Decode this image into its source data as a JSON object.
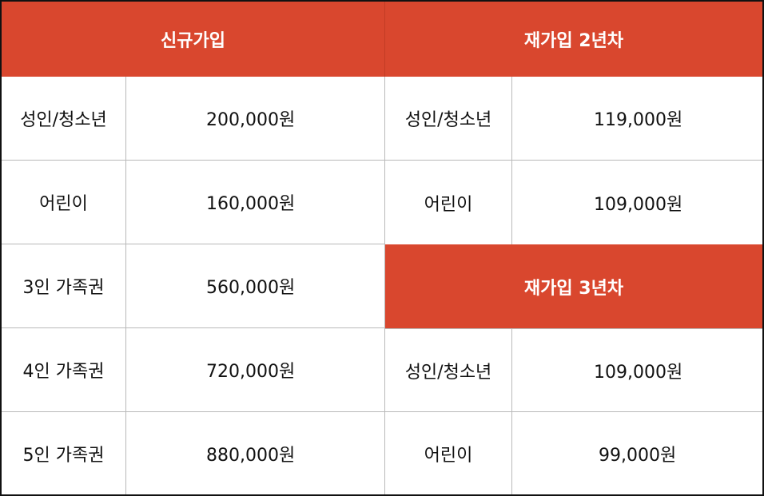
{
  "colors": {
    "header_bg": "#d9472e",
    "header_text": "#ffffff",
    "body_text": "#111111",
    "grid_line": "#b9b9b9"
  },
  "new_join": {
    "header": "신규가입",
    "rows": [
      {
        "label": "성인/청소년",
        "price": "200,000원"
      },
      {
        "label": "어린이",
        "price": "160,000원"
      },
      {
        "label": "3인 가족권",
        "price": "560,000원"
      },
      {
        "label": "4인 가족권",
        "price": "720,000원"
      },
      {
        "label": "5인 가족권",
        "price": "880,000원"
      }
    ]
  },
  "rejoin_2y": {
    "header": "재가입 2년차",
    "rows": [
      {
        "label": "성인/청소년",
        "price": "119,000원"
      },
      {
        "label": "어린이",
        "price": "109,000원"
      }
    ]
  },
  "rejoin_3y": {
    "header": "재가입 3년차",
    "rows": [
      {
        "label": "성인/청소년",
        "price": "109,000원"
      },
      {
        "label": "어린이",
        "price": "99,000원"
      }
    ]
  }
}
